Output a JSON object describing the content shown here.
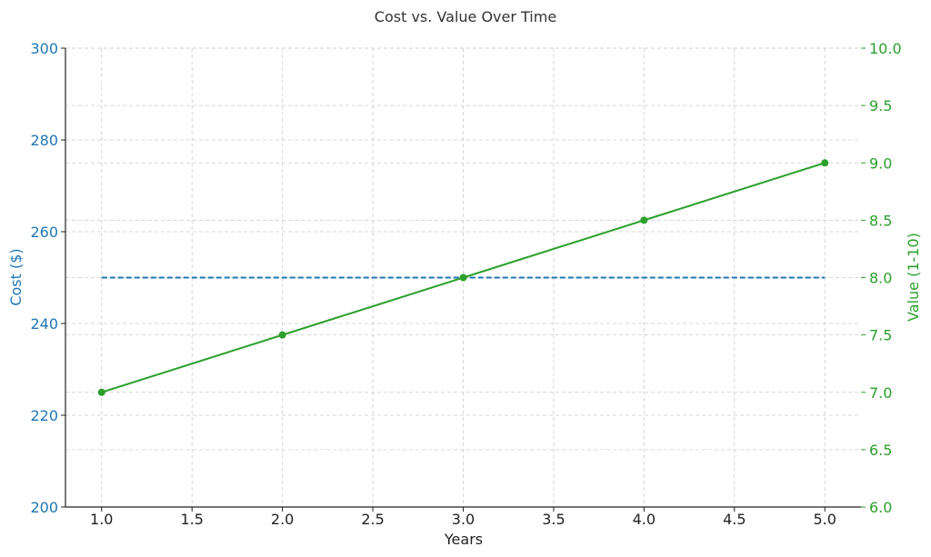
{
  "chart_data": {
    "type": "line",
    "title": "Cost vs. Value Over Time",
    "xlabel": "Years",
    "x": [
      1,
      2,
      3,
      4,
      5
    ],
    "xlim": [
      0.8,
      5.2
    ],
    "x_ticks": [
      1.0,
      1.5,
      2.0,
      2.5,
      3.0,
      3.5,
      4.0,
      4.5,
      5.0
    ],
    "x_tick_labels": [
      "1.0",
      "1.5",
      "2.0",
      "2.5",
      "3.0",
      "3.5",
      "4.0",
      "4.5",
      "5.0"
    ],
    "grid": true,
    "y_left": {
      "label": "Cost ($)",
      "ylim": [
        200,
        300
      ],
      "ticks": [
        200,
        220,
        240,
        260,
        280,
        300
      ],
      "tick_labels": [
        "200",
        "220",
        "240",
        "260",
        "280",
        "300"
      ],
      "color": "#1f77b4"
    },
    "y_right": {
      "label": "Value (1-10)",
      "ylim": [
        6.0,
        10.0
      ],
      "ticks": [
        6.0,
        6.5,
        7.0,
        7.5,
        8.0,
        8.5,
        9.0,
        9.5,
        10.0
      ],
      "tick_labels": [
        "6.0",
        "6.5",
        "7.0",
        "7.5",
        "8.0",
        "8.5",
        "9.0",
        "9.5",
        "10.0"
      ],
      "color": "#2ca02c"
    },
    "series": [
      {
        "axis": "left",
        "values": [
          250,
          250,
          250,
          250,
          250
        ],
        "color": "#1f77b4",
        "style": "dashed",
        "markers": false
      },
      {
        "axis": "right",
        "values": [
          7.0,
          7.5,
          8.0,
          8.5,
          9.0
        ],
        "color": "#2ca02c",
        "style": "solid",
        "markers": true
      }
    ]
  }
}
